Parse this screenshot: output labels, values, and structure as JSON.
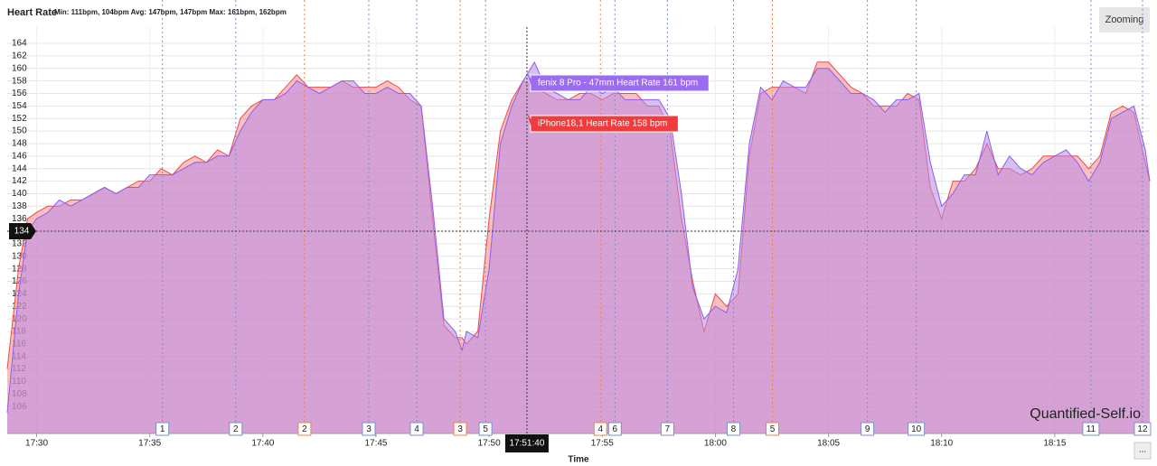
{
  "chart_data": {
    "type": "area",
    "title": "Heart Rate",
    "subtitle": "Min: 111bpm, 104bpm Avg: 147bpm, 147bpm Max: 161bpm, 162bpm",
    "x_label": "Time",
    "watermark": "Quantified-Self.io",
    "zoom_button": "Zooming",
    "menu_button": "...",
    "x": [
      1048.7,
      1049.2,
      1049.6,
      1050,
      1050.5,
      1051,
      1051.5,
      1052,
      1052.5,
      1053,
      1053.5,
      1054,
      1054.5,
      1055,
      1055.5,
      1056,
      1056.5,
      1057,
      1057.5,
      1058,
      1058.5,
      1059,
      1059.5,
      1060,
      1060.5,
      1061,
      1061.5,
      1062,
      1062.5,
      1063,
      1063.5,
      1064,
      1064.5,
      1065,
      1065.5,
      1066,
      1066.5,
      1067,
      1067.5,
      1068,
      1068.5,
      1068.8,
      1069,
      1069.5,
      1070,
      1070.5,
      1071,
      1071.5,
      1072,
      1072.5,
      1073,
      1073.5,
      1074,
      1074.5,
      1075,
      1075.5,
      1076,
      1076.5,
      1077,
      1077.5,
      1078,
      1078.5,
      1079,
      1079.5,
      1080,
      1080.5,
      1081,
      1081.5,
      1082,
      1082.5,
      1083,
      1083.5,
      1084,
      1084.5,
      1085,
      1085.5,
      1086,
      1086.5,
      1087,
      1087.5,
      1088,
      1088.5,
      1089,
      1089.5,
      1090,
      1090.5,
      1091,
      1091.5,
      1092,
      1092.5,
      1093,
      1093.5,
      1094,
      1094.5,
      1095,
      1095.5,
      1096,
      1096.5,
      1097,
      1097.5,
      1098,
      1098.5,
      1099,
      1099.2
    ],
    "series": [
      {
        "color": "#f04848",
        "fill": "#f58a8a",
        "values": [
          112,
          128,
          136,
          137,
          138,
          138,
          139,
          139,
          140,
          141,
          140,
          141,
          142,
          142,
          144,
          143,
          145,
          146,
          145,
          147,
          146,
          152,
          154,
          155,
          155,
          157,
          159,
          157,
          157,
          157,
          158,
          157,
          157,
          157,
          158,
          157,
          155,
          154,
          136,
          119,
          117,
          117,
          116,
          118,
          136,
          150,
          155,
          158,
          157,
          156,
          155,
          155,
          156,
          156,
          155,
          156,
          156,
          156,
          154,
          154,
          150,
          136,
          126,
          118,
          124,
          122,
          124,
          146,
          156,
          157,
          157,
          157,
          156,
          161,
          161,
          159,
          157,
          156,
          154,
          154,
          154,
          156,
          155,
          141,
          136,
          142,
          142,
          144,
          148,
          144,
          144,
          143,
          144,
          146,
          146,
          146,
          146,
          144,
          146,
          153,
          154,
          153,
          145,
          142
        ]
      },
      {
        "color": "#8a5ef0",
        "fill": "#b88ae8",
        "values": [
          105,
          124,
          134,
          136,
          137,
          139,
          138,
          139,
          140,
          141,
          140,
          141,
          141,
          143,
          143,
          143,
          144,
          145,
          145,
          146,
          146,
          150,
          153,
          155,
          155,
          156,
          158,
          157,
          156,
          157,
          158,
          158,
          156,
          156,
          157,
          156,
          156,
          154,
          138,
          120,
          118,
          115,
          118,
          117,
          128,
          148,
          154,
          158,
          161,
          157,
          156,
          155,
          155,
          157,
          156,
          157,
          155,
          155,
          155,
          155,
          152,
          140,
          125,
          120,
          122,
          121,
          128,
          148,
          157,
          155,
          158,
          157,
          157,
          160,
          160,
          158,
          156,
          156,
          155,
          153,
          155,
          155,
          156,
          145,
          138,
          140,
          143,
          143,
          150,
          143,
          146,
          144,
          143,
          145,
          146,
          147,
          145,
          142,
          145,
          152,
          153,
          154,
          147,
          142
        ]
      }
    ],
    "xlim": [
      1048.7,
      1099.2
    ],
    "ylim": [
      101.7,
      166.6
    ],
    "xticks": [
      {
        "value": 1050,
        "label": "17:30"
      },
      {
        "value": 1055,
        "label": "17:35"
      },
      {
        "value": 1060,
        "label": "17:40"
      },
      {
        "value": 1065,
        "label": "17:45"
      },
      {
        "value": 1070,
        "label": "17:50"
      },
      {
        "value": 1075,
        "label": "17:55"
      },
      {
        "value": 1080,
        "label": "18:00"
      },
      {
        "value": 1085,
        "label": "18:05"
      },
      {
        "value": 1090,
        "label": "18:10"
      },
      {
        "value": 1095,
        "label": "18:15"
      }
    ],
    "yticks": [
      106,
      108,
      110,
      112,
      114,
      116,
      118,
      120,
      122,
      124,
      126,
      128,
      130,
      132,
      134,
      136,
      138,
      140,
      142,
      144,
      146,
      148,
      150,
      152,
      154,
      156,
      158,
      160,
      162,
      164
    ],
    "grid": true,
    "laps": [
      {
        "label": "1",
        "x": 1055.56,
        "color": "#7a8fd0"
      },
      {
        "label": "2",
        "x": 1058.8,
        "color": "#7a8fd0"
      },
      {
        "label": "2",
        "x": 1061.84,
        "color": "#f08040"
      },
      {
        "label": "3",
        "x": 1064.68,
        "color": "#7a8fd0"
      },
      {
        "label": "4",
        "x": 1066.8,
        "color": "#7a8fd0"
      },
      {
        "label": "3",
        "x": 1068.72,
        "color": "#f08040"
      },
      {
        "label": "5",
        "x": 1069.84,
        "color": "#7a8fd0"
      },
      {
        "label": "4",
        "x": 1074.92,
        "color": "#f08040"
      },
      {
        "label": "6",
        "x": 1075.56,
        "color": "#7a8fd0"
      },
      {
        "label": "7",
        "x": 1077.88,
        "color": "#7a8fd0"
      },
      {
        "label": "8",
        "x": 1080.8,
        "color": "#7a8fd0"
      },
      {
        "label": "5",
        "x": 1082.52,
        "color": "#f08040"
      },
      {
        "label": "9",
        "x": 1086.72,
        "color": "#7a8fd0"
      },
      {
        "label": "10",
        "x": 1088.88,
        "color": "#7a8fd0"
      },
      {
        "label": "11",
        "x": 1096.6,
        "color": "#7a8fd0"
      },
      {
        "label": "12",
        "x": 1098.88,
        "color": "#7a8fd0"
      }
    ],
    "crosshair": {
      "x": 1071.67,
      "x_label": "17:51:40",
      "y": 134
    },
    "tooltips": [
      {
        "text": "fenix 8 Pro - 47mm Heart Rate 161 bpm",
        "color": "#9b6cf0"
      },
      {
        "text": "iPhone18,1 Heart Rate 158 bpm",
        "color": "#f03c3c"
      }
    ]
  }
}
